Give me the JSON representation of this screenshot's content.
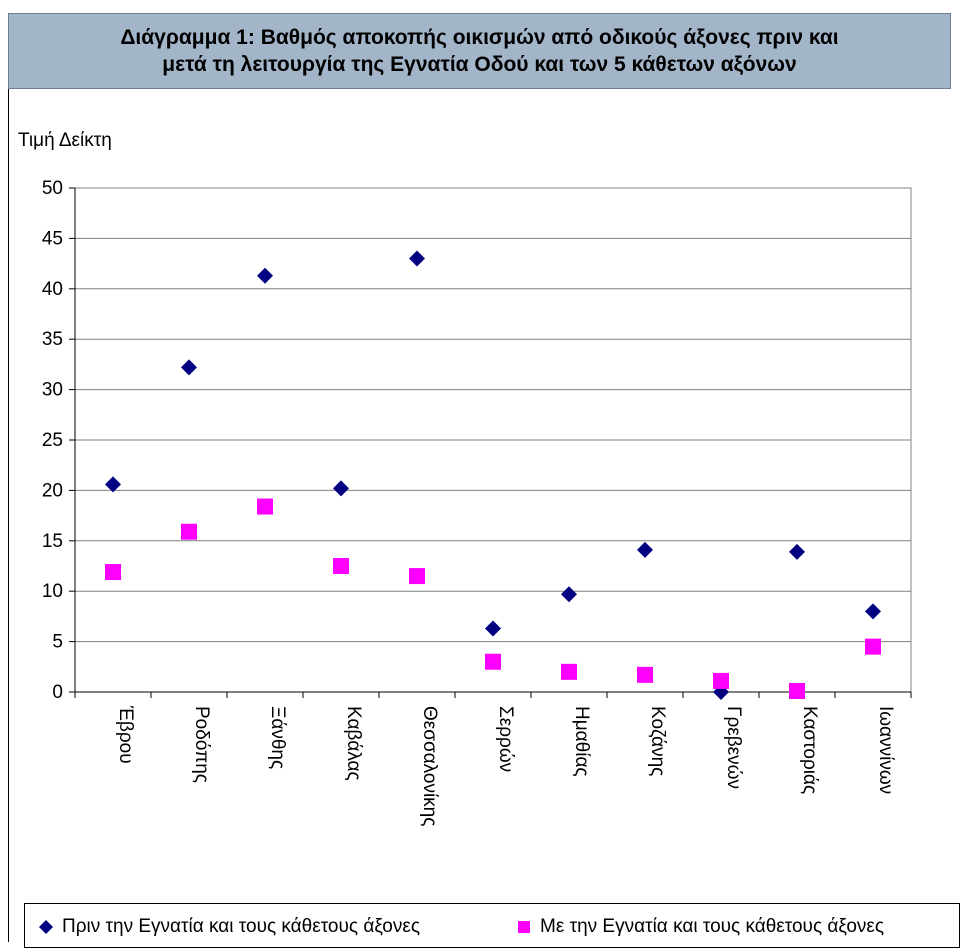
{
  "title": {
    "line1": "Διάγραμμα 1: Βαθμός αποκοπής οικισμών από οδικούς άξονες πριν και",
    "line2": "μετά τη λειτουργία της Εγνατία Οδού και των 5 κάθετων αξόνων"
  },
  "chart_data": {
    "type": "scatter",
    "ylabel": "Τιμή Δείκτη",
    "xlabel": "",
    "ylim": [
      0,
      50
    ],
    "yticks": [
      0,
      5,
      10,
      15,
      20,
      25,
      30,
      35,
      40,
      45,
      50
    ],
    "grid": true,
    "legend_position": "bottom",
    "categories": [
      "Έβρου",
      "Ροδόπης",
      "Ξάνθης",
      "Καβάλας",
      "Θεσσαλονίκης",
      "Σερρών",
      "Ημαθίας",
      "Κοζάνης",
      "Γρεβενών",
      "Καστοριάς",
      "Ιωαννίνων"
    ],
    "series": [
      {
        "name": "Πριν την Εγνατία και τους κάθετους άξονες",
        "marker": "diamond",
        "color": "#000080",
        "values": [
          20.6,
          32.2,
          41.3,
          20.2,
          43.0,
          6.3,
          9.7,
          14.1,
          0.0,
          13.9,
          8.0
        ]
      },
      {
        "name": "Με την Εγνατία και τους κάθετους άξονες",
        "marker": "square",
        "color": "#ff00ff",
        "values": [
          11.9,
          15.9,
          18.4,
          12.5,
          11.5,
          3.0,
          2.0,
          1.7,
          1.1,
          0.1,
          4.5
        ]
      }
    ]
  }
}
